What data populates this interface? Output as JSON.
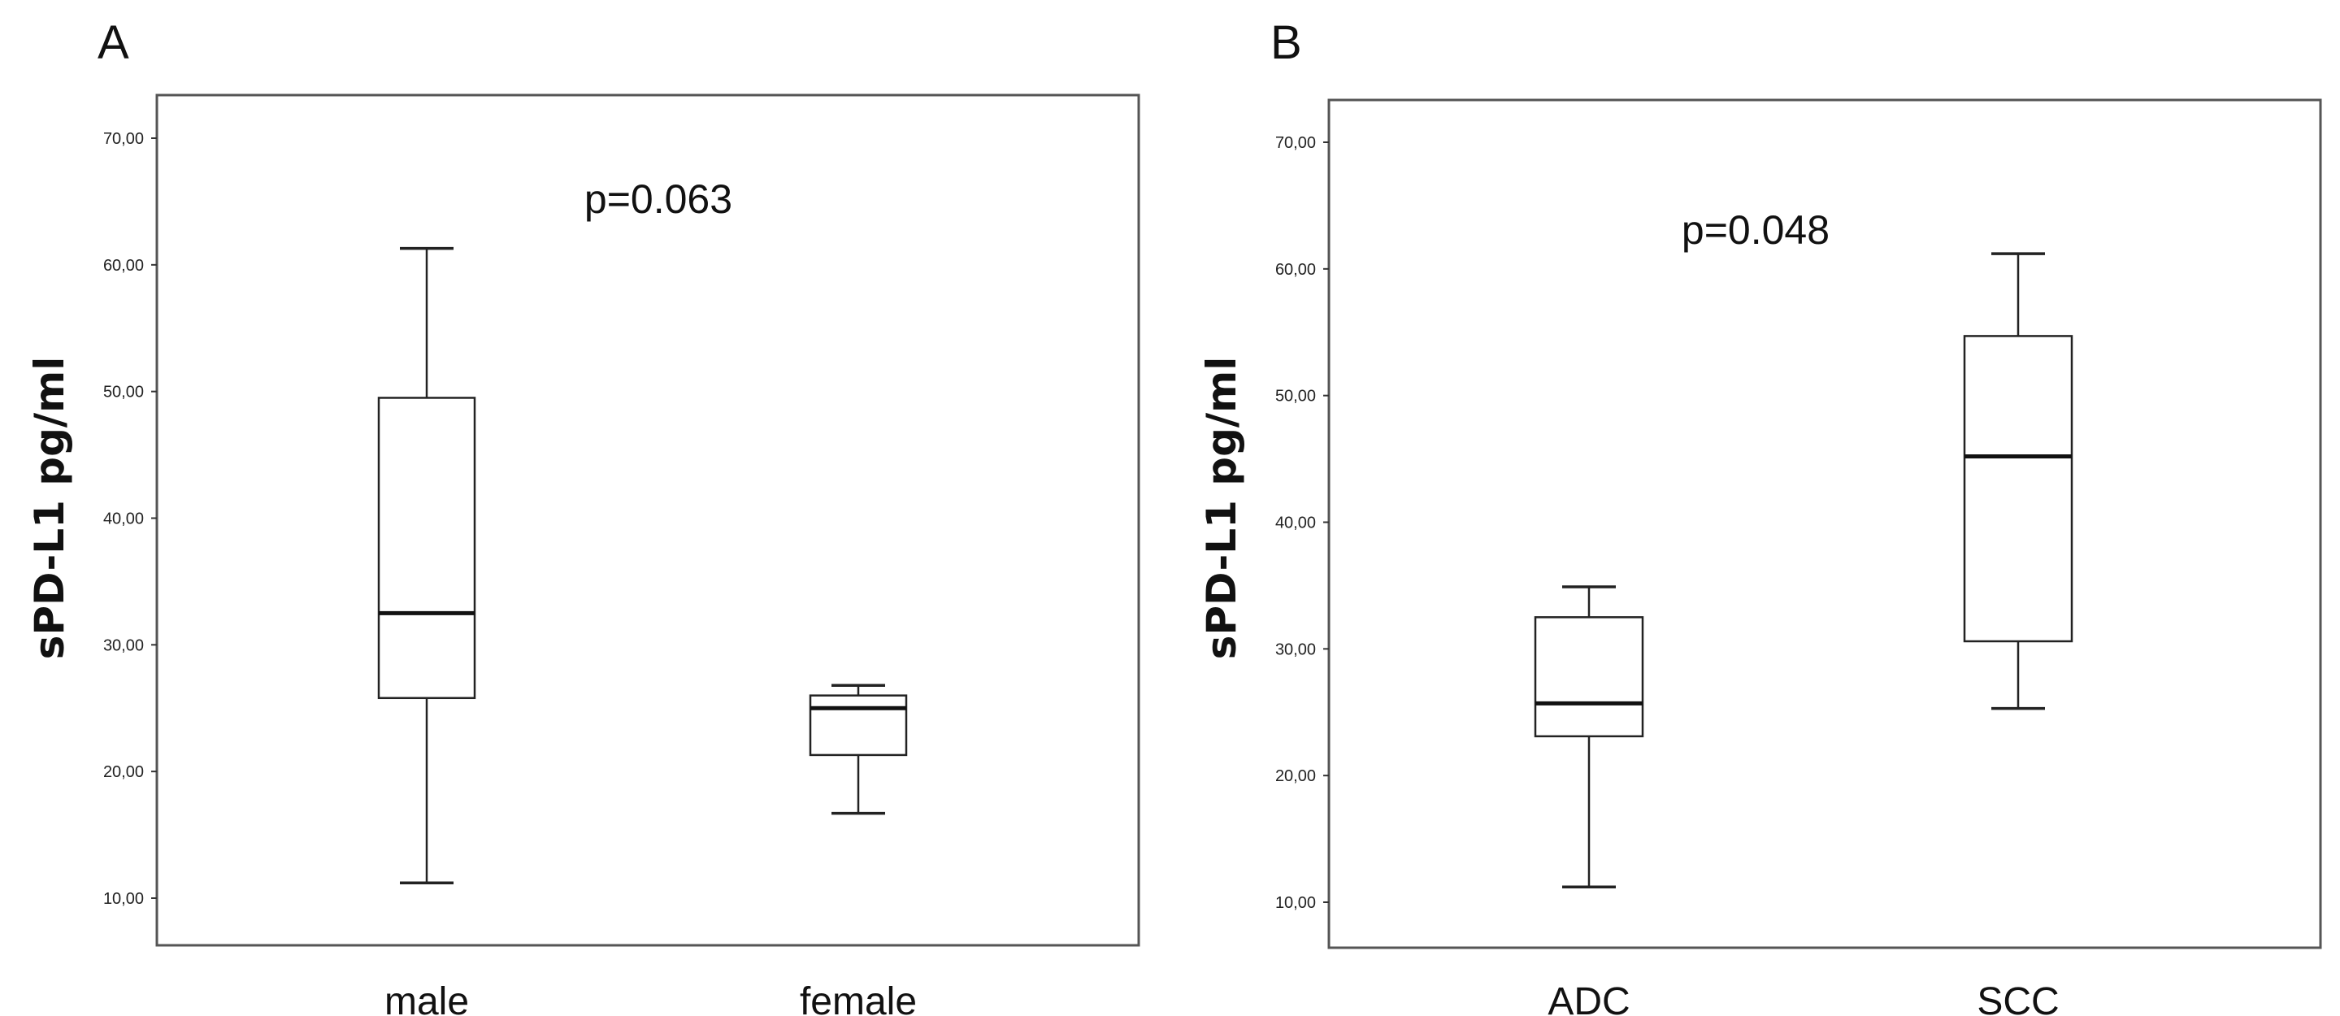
{
  "chart_data": [
    {
      "type": "boxplot",
      "panel": "A",
      "ylabel": "sPD-L1 pg/ml",
      "ylim": [
        5,
        72
      ],
      "yticks": [
        "10,00",
        "20,00",
        "30,00",
        "40,00",
        "50,00",
        "60,00",
        "70,00"
      ],
      "ytick_values": [
        10,
        20,
        30,
        40,
        50,
        60,
        70
      ],
      "annotation": "p=0.063",
      "categories": [
        "male",
        "female"
      ],
      "boxes": [
        {
          "name": "male",
          "min": 11.2,
          "q1": 25.8,
          "median": 32.5,
          "q3": 49.5,
          "max": 61.3
        },
        {
          "name": "female",
          "min": 16.7,
          "q1": 21.3,
          "median": 25.0,
          "q3": 26.0,
          "max": 26.8
        }
      ]
    },
    {
      "type": "boxplot",
      "panel": "B",
      "ylabel": "sPD-L1 pg/ml",
      "ylim": [
        5,
        72
      ],
      "yticks": [
        "10,00",
        "20,00",
        "30,00",
        "40,00",
        "50,00",
        "60,00",
        "70,00"
      ],
      "ytick_values": [
        10,
        20,
        30,
        40,
        50,
        60,
        70
      ],
      "annotation": "p=0.048",
      "categories": [
        "ADC",
        "SCC"
      ],
      "boxes": [
        {
          "name": "ADC",
          "min": 11.2,
          "q1": 23.1,
          "median": 25.7,
          "q3": 32.5,
          "max": 34.9
        },
        {
          "name": "SCC",
          "min": 25.3,
          "q1": 30.6,
          "median": 45.2,
          "q3": 54.7,
          "max": 61.2
        }
      ]
    }
  ]
}
